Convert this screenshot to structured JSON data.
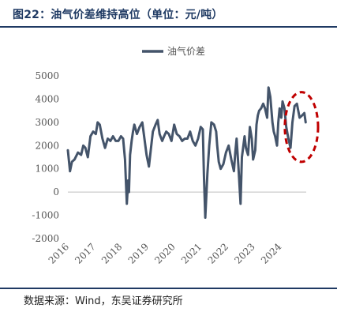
{
  "figure": {
    "title": "图22：油气价差维持高位（单位：元/吨）",
    "source": "数据来源：Wind，东吴证券研究所"
  },
  "colors": {
    "series": "#44546a",
    "highlight": "#c00000",
    "title": "#1f3a63"
  },
  "chart_data": {
    "type": "line",
    "title": "",
    "xlabel": "",
    "ylabel": "",
    "xlim": [
      2016,
      2024.97
    ],
    "ylim": [
      -2000,
      5000
    ],
    "y_ticks": [
      5000,
      4000,
      3000,
      2000,
      1000,
      0,
      -1000,
      -2000
    ],
    "x_ticks": [
      "2016",
      "2017",
      "2018",
      "2019",
      "2020",
      "2021",
      "2022",
      "2023",
      "2024"
    ],
    "grid": false,
    "legend": {
      "position": "top-center",
      "entries": [
        "油气价差"
      ]
    },
    "highlight_ellipse": {
      "x_range": [
        2024.58,
        2025.0
      ],
      "y_range": [
        1300,
        4300
      ],
      "style": "dashed"
    },
    "series": [
      {
        "name": "油气价差",
        "x": [
          2016.0,
          2016.08,
          2016.15,
          2016.25,
          2016.38,
          2016.5,
          2016.58,
          2016.66,
          2016.75,
          2016.85,
          2016.95,
          2017.05,
          2017.12,
          2017.2,
          2017.3,
          2017.4,
          2017.5,
          2017.6,
          2017.7,
          2017.8,
          2017.9,
          2018.0,
          2018.08,
          2018.15,
          2018.22,
          2018.27,
          2018.3,
          2018.34,
          2018.4,
          2018.45,
          2018.5,
          2018.6,
          2018.7,
          2018.8,
          2018.88,
          2018.96,
          2019.05,
          2019.12,
          2019.2,
          2019.3,
          2019.38,
          2019.45,
          2019.55,
          2019.62,
          2019.7,
          2019.8,
          2019.9,
          2020.0,
          2020.1,
          2020.2,
          2020.3,
          2020.4,
          2020.5,
          2020.6,
          2020.7,
          2020.8,
          2020.9,
          2021.0,
          2021.08,
          2021.12,
          2021.17,
          2021.25,
          2021.32,
          2021.4,
          2021.5,
          2021.58,
          2021.62,
          2021.68,
          2021.75,
          2021.85,
          2021.95,
          2022.05,
          2022.15,
          2022.25,
          2022.3,
          2022.35,
          2022.42,
          2022.5,
          2022.55,
          2022.65,
          2022.7,
          2022.78,
          2022.85,
          2022.92,
          2022.97,
          2023.05,
          2023.1,
          2023.15,
          2023.2,
          2023.27,
          2023.35,
          2023.42,
          2023.5,
          2023.55,
          2023.62,
          2023.7,
          2023.75,
          2023.8,
          2023.87,
          2023.92,
          2023.97,
          2024.03,
          2024.08,
          2024.15,
          2024.22,
          2024.3,
          2024.38,
          2024.45,
          2024.53,
          2024.62,
          2024.72,
          2024.82,
          2024.9,
          2024.95
        ],
        "y": [
          1800,
          900,
          1300,
          1400,
          1700,
          1600,
          2000,
          1900,
          1500,
          2400,
          2600,
          2500,
          3000,
          2900,
          2300,
          1900,
          2300,
          2200,
          2400,
          2200,
          2200,
          2400,
          2300,
          1400,
          -500,
          500,
          0,
          1600,
          2200,
          2600,
          2900,
          2500,
          2800,
          3000,
          2300,
          1600,
          1100,
          1800,
          2600,
          2900,
          3100,
          2500,
          2200,
          2400,
          2600,
          2500,
          2200,
          2900,
          2500,
          2400,
          2200,
          2300,
          2300,
          2600,
          2200,
          2000,
          2300,
          2800,
          2700,
          700,
          -1100,
          800,
          2000,
          3000,
          2900,
          2600,
          2000,
          1300,
          1000,
          1200,
          1700,
          2000,
          1400,
          900,
          1700,
          2300,
          1100,
          -500,
          1500,
          2400,
          1900,
          1600,
          2800,
          2300,
          1400,
          1800,
          2900,
          3300,
          3500,
          3600,
          3800,
          3600,
          3200,
          4500,
          4100,
          3000,
          2600,
          2400,
          2000,
          3000,
          3600,
          3200,
          3900,
          3600,
          2800,
          2300,
          1900,
          3000,
          3700,
          3800,
          3200,
          3300,
          3400,
          3000
        ]
      }
    ]
  }
}
